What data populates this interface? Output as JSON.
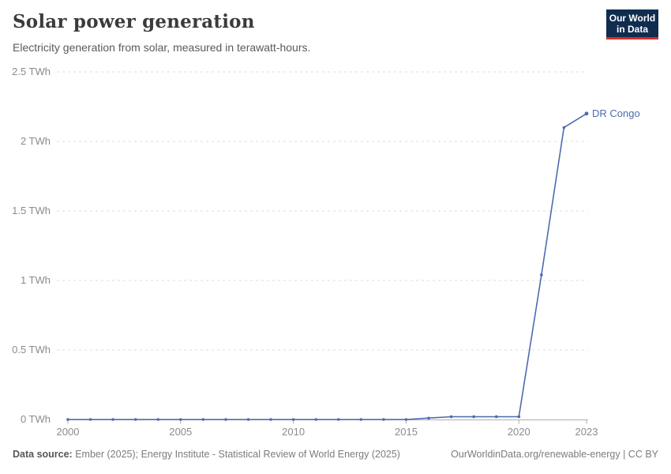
{
  "header": {
    "title": "Solar power generation",
    "subtitle": "Electricity generation from solar, measured in terawatt-hours."
  },
  "logo": {
    "line1": "Our World",
    "line2": "in Data",
    "bg_color": "#102d50",
    "accent_color": "#dc2e27"
  },
  "chart_data": {
    "type": "line",
    "title": "Solar power generation",
    "unit": "TWh",
    "x": [
      2000,
      2001,
      2002,
      2003,
      2004,
      2005,
      2006,
      2007,
      2008,
      2009,
      2010,
      2011,
      2012,
      2013,
      2014,
      2015,
      2016,
      2017,
      2018,
      2019,
      2020,
      2021,
      2022,
      2023
    ],
    "series": [
      {
        "name": "DR Congo",
        "color": "#4c6cae",
        "values": [
          0,
          0,
          0,
          0,
          0,
          0,
          0,
          0,
          0,
          0,
          0,
          0,
          0,
          0,
          0,
          0,
          0.01,
          0.02,
          0.02,
          0.02,
          0.02,
          1.04,
          2.1,
          2.2
        ]
      }
    ],
    "ylim": [
      0,
      2.5
    ],
    "y_ticks": [
      {
        "value": 0,
        "label": "0 TWh"
      },
      {
        "value": 0.5,
        "label": "0.5 TWh"
      },
      {
        "value": 1,
        "label": "1 TWh"
      },
      {
        "value": 1.5,
        "label": "1.5 TWh"
      },
      {
        "value": 2,
        "label": "2 TWh"
      },
      {
        "value": 2.5,
        "label": "2.5 TWh"
      }
    ],
    "x_ticks": [
      {
        "value": 2000,
        "label": "2000"
      },
      {
        "value": 2005,
        "label": "2005"
      },
      {
        "value": 2010,
        "label": "2010"
      },
      {
        "value": 2015,
        "label": "2015"
      },
      {
        "value": 2020,
        "label": "2020"
      },
      {
        "value": 2023,
        "label": "2023"
      }
    ],
    "grid": "dashed-horizontal",
    "legend_position": "end-of-line",
    "gridline_color": "#dcdcdc",
    "axis_color": "#afafaf"
  },
  "footer": {
    "data_source_label": "Data source:",
    "data_source_text": " Ember (2025); Energy Institute - Statistical Review of World Energy (2025)",
    "link_text": "OurWorldinData.org/renewable-energy | CC BY"
  }
}
